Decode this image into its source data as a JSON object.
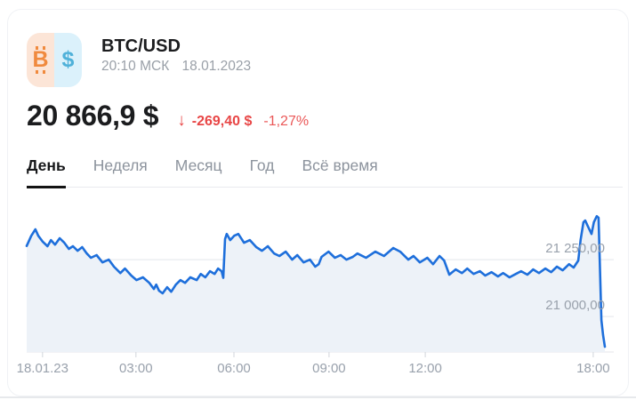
{
  "widget": {
    "pair": "BTC/USD",
    "time": "20:10 МСК",
    "date": "18.01.2023"
  },
  "icons": {
    "bitcoin": "₿",
    "dollar": "$",
    "down_arrow": "↓"
  },
  "price": {
    "current": "20 866,9 $",
    "change_abs": "-269,40 $",
    "change_pct": "-1,27%",
    "trend": "down"
  },
  "tabs": [
    {
      "label": "День",
      "active": true
    },
    {
      "label": "Неделя",
      "active": false
    },
    {
      "label": "Месяц",
      "active": false
    },
    {
      "label": "Год",
      "active": false
    },
    {
      "label": "Всё время",
      "active": false
    }
  ],
  "colors": {
    "line": "#1e6fdb",
    "area_fill": "#edf2f8",
    "grid": "#e9ebef",
    "tick": "#d9dce1",
    "axis_text": "#99a1ac",
    "negative_red": "#e84646",
    "text_primary": "#1b1c1e",
    "text_secondary": "#9aa0a8",
    "icon_btc_bg": "#fce5d7",
    "icon_btc": "#f08a3e",
    "icon_usd_bg": "#dbf1fb",
    "icon_usd": "#4fb1d9"
  },
  "chart_data": {
    "type": "line",
    "period": "День",
    "x_range": [
      "00:00",
      "20:10"
    ],
    "y_domain": [
      20844,
      21473
    ],
    "grid": true,
    "y_gridlines": [
      {
        "label": "21 250,00",
        "value": 21250
      },
      {
        "label": "21 000,00",
        "value": 21000
      }
    ],
    "x_ticks": [
      {
        "label": "18.01.23",
        "t": 0.027
      },
      {
        "label": "03:00",
        "t": 0.186
      },
      {
        "label": "06:00",
        "t": 0.353
      },
      {
        "label": "09:00",
        "t": 0.515
      },
      {
        "label": "12:00",
        "t": 0.679
      },
      {
        "label": "18:00",
        "t": 0.965
      }
    ],
    "series": [
      {
        "name": "BTC/USD",
        "points": [
          [
            0,
            21310
          ],
          [
            0.008,
            21355
          ],
          [
            0.015,
            21383
          ],
          [
            0.02,
            21355
          ],
          [
            0.028,
            21328
          ],
          [
            0.036,
            21309
          ],
          [
            0.042,
            21336
          ],
          [
            0.049,
            21316
          ],
          [
            0.057,
            21344
          ],
          [
            0.065,
            21324
          ],
          [
            0.073,
            21297
          ],
          [
            0.08,
            21309
          ],
          [
            0.088,
            21289
          ],
          [
            0.096,
            21305
          ],
          [
            0.104,
            21277
          ],
          [
            0.111,
            21258
          ],
          [
            0.121,
            21270
          ],
          [
            0.131,
            21238
          ],
          [
            0.142,
            21250
          ],
          [
            0.151,
            21219
          ],
          [
            0.162,
            21191
          ],
          [
            0.17,
            21211
          ],
          [
            0.181,
            21180
          ],
          [
            0.19,
            21160
          ],
          [
            0.201,
            21172
          ],
          [
            0.212,
            21148
          ],
          [
            0.22,
            21121
          ],
          [
            0.224,
            21140
          ],
          [
            0.229,
            21113
          ],
          [
            0.235,
            21102
          ],
          [
            0.243,
            21129
          ],
          [
            0.25,
            21109
          ],
          [
            0.258,
            21140
          ],
          [
            0.266,
            21160
          ],
          [
            0.274,
            21148
          ],
          [
            0.283,
            21172
          ],
          [
            0.294,
            21160
          ],
          [
            0.301,
            21187
          ],
          [
            0.309,
            21172
          ],
          [
            0.317,
            21199
          ],
          [
            0.325,
            21187
          ],
          [
            0.331,
            21211
          ],
          [
            0.337,
            21199
          ],
          [
            0.34,
            21170
          ],
          [
            0.343,
            21340
          ],
          [
            0.346,
            21363
          ],
          [
            0.352,
            21336
          ],
          [
            0.359,
            21355
          ],
          [
            0.366,
            21363
          ],
          [
            0.376,
            21324
          ],
          [
            0.386,
            21336
          ],
          [
            0.397,
            21305
          ],
          [
            0.407,
            21289
          ],
          [
            0.417,
            21309
          ],
          [
            0.428,
            21277
          ],
          [
            0.437,
            21266
          ],
          [
            0.448,
            21285
          ],
          [
            0.459,
            21250
          ],
          [
            0.468,
            21270
          ],
          [
            0.479,
            21238
          ],
          [
            0.49,
            21250
          ],
          [
            0.499,
            21219
          ],
          [
            0.505,
            21230
          ],
          [
            0.51,
            21262
          ],
          [
            0.522,
            21285
          ],
          [
            0.533,
            21258
          ],
          [
            0.543,
            21270
          ],
          [
            0.553,
            21250
          ],
          [
            0.564,
            21262
          ],
          [
            0.572,
            21277
          ],
          [
            0.587,
            21258
          ],
          [
            0.603,
            21285
          ],
          [
            0.618,
            21266
          ],
          [
            0.634,
            21301
          ],
          [
            0.646,
            21285
          ],
          [
            0.66,
            21250
          ],
          [
            0.669,
            21266
          ],
          [
            0.68,
            21238
          ],
          [
            0.693,
            21258
          ],
          [
            0.703,
            21230
          ],
          [
            0.714,
            21266
          ],
          [
            0.722,
            21246
          ],
          [
            0.731,
            21184
          ],
          [
            0.742,
            21207
          ],
          [
            0.753,
            21191
          ],
          [
            0.762,
            21211
          ],
          [
            0.773,
            21187
          ],
          [
            0.784,
            21199
          ],
          [
            0.793,
            21180
          ],
          [
            0.804,
            21195
          ],
          [
            0.815,
            21176
          ],
          [
            0.824,
            21191
          ],
          [
            0.835,
            21172
          ],
          [
            0.846,
            21187
          ],
          [
            0.855,
            21199
          ],
          [
            0.866,
            21184
          ],
          [
            0.876,
            21207
          ],
          [
            0.886,
            21191
          ],
          [
            0.897,
            21211
          ],
          [
            0.907,
            21195
          ],
          [
            0.917,
            21219
          ],
          [
            0.927,
            21203
          ],
          [
            0.938,
            21230
          ],
          [
            0.946,
            21215
          ],
          [
            0.954,
            21246
          ],
          [
            0.958,
            21336
          ],
          [
            0.963,
            21414
          ],
          [
            0.966,
            21422
          ],
          [
            0.971,
            21395
          ],
          [
            0.977,
            21363
          ],
          [
            0.981,
            21414
          ],
          [
            0.986,
            21441
          ],
          [
            0.989,
            21434
          ],
          [
            0.992,
            21168
          ],
          [
            0.994,
            20984
          ],
          [
            0.997,
            20918
          ],
          [
            1,
            20867
          ]
        ]
      }
    ]
  }
}
